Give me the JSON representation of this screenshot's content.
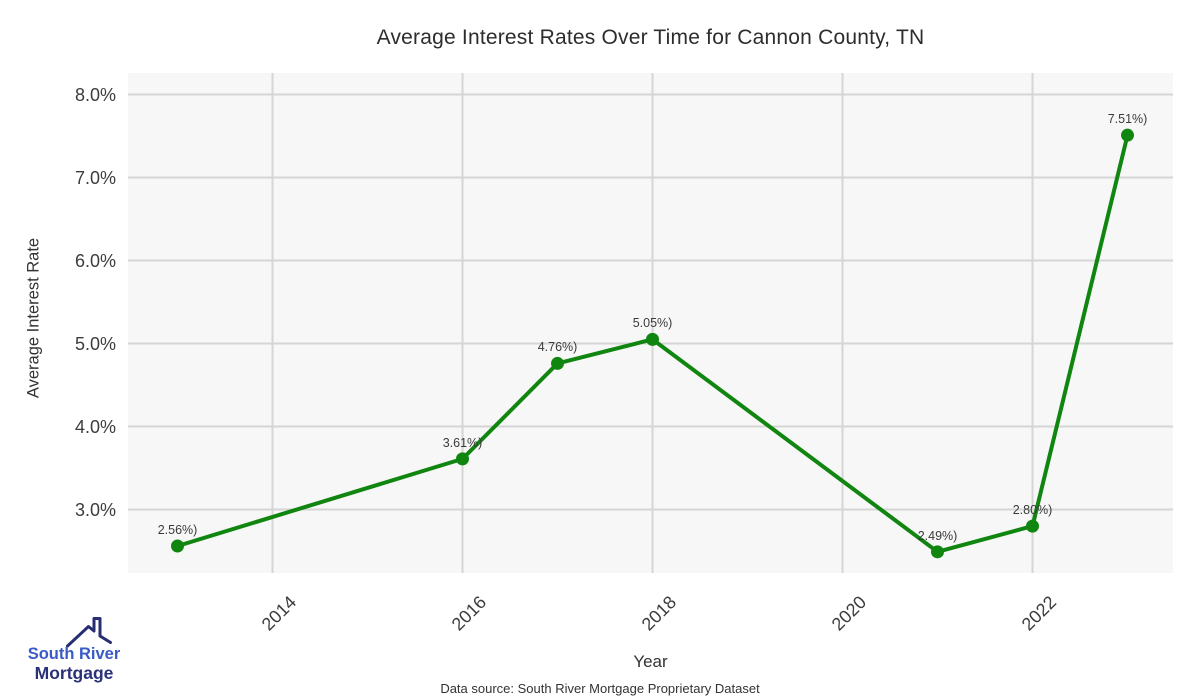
{
  "page": {
    "source_note": "Data source: South River Mortgage Proprietary Dataset"
  },
  "logo": {
    "line1": "South River",
    "line2": "Mortgage"
  },
  "chart_data": {
    "type": "line",
    "title": "Average Interest Rates Over Time for Cannon County, TN",
    "xlabel": "Year",
    "ylabel": "Average Interest Rate",
    "series_name": "Average Interest Rate",
    "points": [
      {
        "x": 2013,
        "y": 2.56,
        "label": "2.56%)"
      },
      {
        "x": 2016,
        "y": 3.61,
        "label": "3.61%)"
      },
      {
        "x": 2017,
        "y": 4.76,
        "label": "4.76%)"
      },
      {
        "x": 2018,
        "y": 5.05,
        "label": "5.05%)"
      },
      {
        "x": 2021,
        "y": 2.49,
        "label": "2.49%)"
      },
      {
        "x": 2022,
        "y": 2.8,
        "label": "2.80%)"
      },
      {
        "x": 2023,
        "y": 7.51,
        "label": "7.51%)"
      }
    ],
    "xticks": [
      {
        "value": 2014,
        "label": "2014"
      },
      {
        "value": 2016,
        "label": "2016"
      },
      {
        "value": 2018,
        "label": "2018"
      },
      {
        "value": 2020,
        "label": "2020"
      },
      {
        "value": 2022,
        "label": "2022"
      }
    ],
    "yticks": [
      {
        "value": 3.0,
        "label": "3.0%"
      },
      {
        "value": 4.0,
        "label": "4.0%"
      },
      {
        "value": 5.0,
        "label": "5.0%"
      },
      {
        "value": 6.0,
        "label": "6.0%"
      },
      {
        "value": 7.0,
        "label": "7.0%"
      },
      {
        "value": 8.0,
        "label": "8.0%"
      }
    ],
    "ylim": [
      2.24,
      8.26
    ],
    "xlim": [
      2012.5,
      2023.5
    ],
    "grid": true,
    "legend": false,
    "colors": {
      "line": "#108610",
      "marker": "#108610",
      "plot_bg": "#f7f7f7",
      "grid": "#d5d5d5",
      "text": "#3c3c3c"
    }
  }
}
